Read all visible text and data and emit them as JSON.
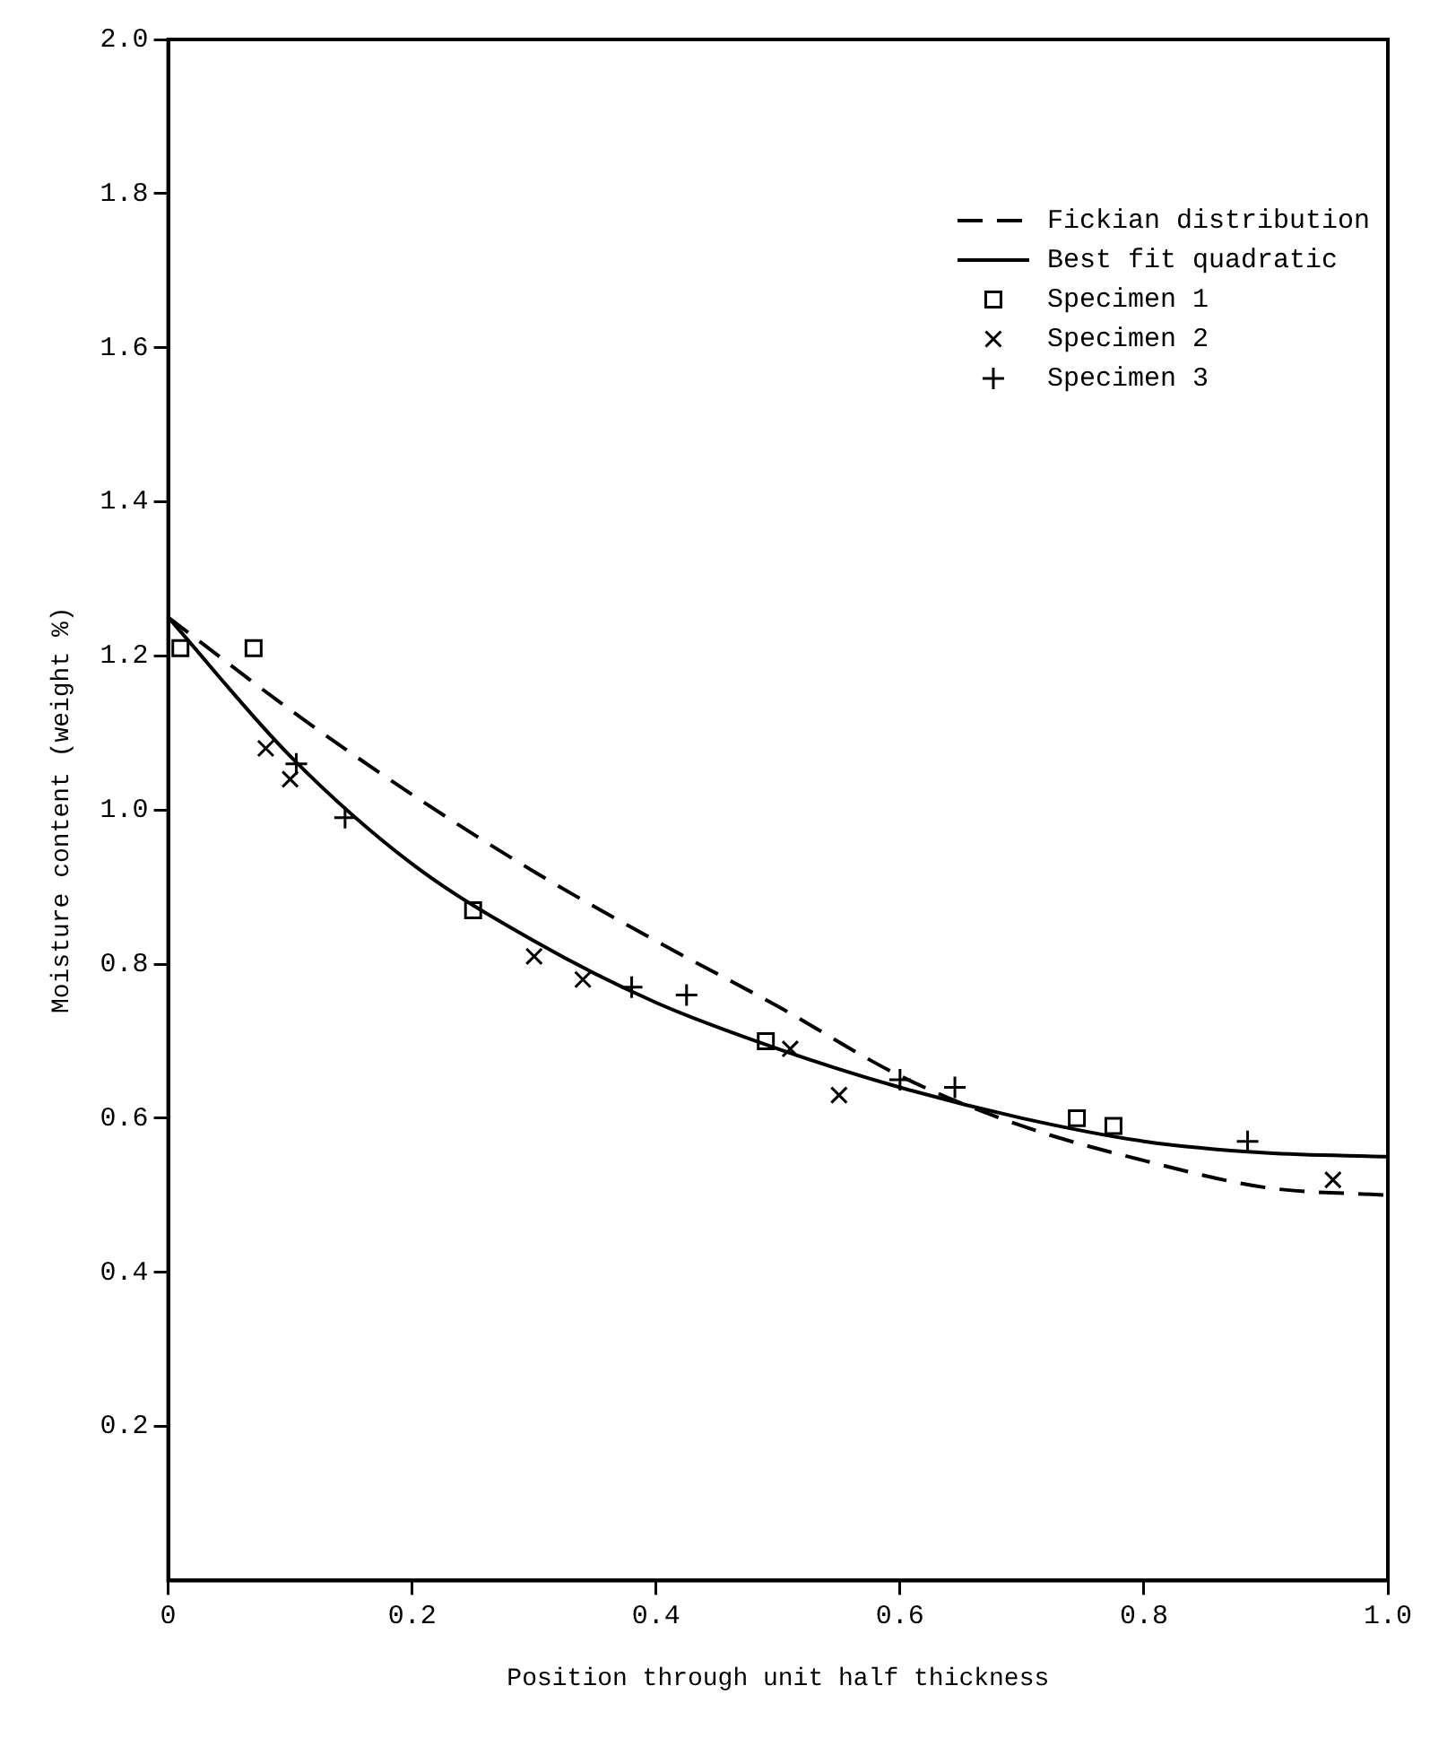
{
  "chart_data": {
    "type": "scatter",
    "xlabel": "Position through unit half thickness",
    "ylabel": "Moisture content (weight %)",
    "xlim": [
      0,
      1.0
    ],
    "xticks": [
      {
        "value": 0,
        "label": "0"
      },
      0.2,
      0.4,
      0.6,
      0.8,
      {
        "value": 1,
        "label": "1.0"
      }
    ],
    "ylim": [
      0,
      2.0
    ],
    "yticks": [
      0.2,
      0.4,
      0.6,
      0.8,
      {
        "value": 1,
        "label": "1.0"
      },
      1.2,
      1.4,
      1.6,
      1.8,
      {
        "value": 2,
        "label": "2.0"
      }
    ],
    "grid": false,
    "legend": "top right",
    "series": [
      {
        "name": "Fickian distribution",
        "type": "line",
        "line_style": "dashed",
        "marker": "none",
        "color": "#000000",
        "x": [
          0,
          0.1,
          0.2,
          0.3,
          0.4,
          0.5,
          0.6,
          0.7,
          0.8,
          0.9,
          1.0
        ],
        "values": [
          1.25,
          1.13,
          1.02,
          0.92,
          0.83,
          0.745,
          0.655,
          0.59,
          0.545,
          0.51,
          0.5
        ]
      },
      {
        "name": "Best fit quadratic",
        "type": "line",
        "line_style": "solid",
        "marker": "none",
        "color": "#000000",
        "x": [
          0,
          0.1,
          0.2,
          0.3,
          0.4,
          0.5,
          0.6,
          0.7,
          0.8,
          0.9,
          1.0
        ],
        "values": [
          1.25,
          1.07,
          0.93,
          0.83,
          0.75,
          0.69,
          0.64,
          0.6,
          0.57,
          0.555,
          0.55
        ]
      },
      {
        "name": "Specimen 1",
        "marker": "square",
        "color": "#000000",
        "x": [
          0.01,
          0.07,
          0.25,
          0.49,
          0.745,
          0.775
        ],
        "values": [
          1.21,
          1.21,
          0.87,
          0.7,
          0.6,
          0.59
        ]
      },
      {
        "name": "Specimen 2",
        "marker": "cross",
        "color": "#000000",
        "x": [
          0.08,
          0.1,
          0.3,
          0.34,
          0.51,
          0.55,
          0.955
        ],
        "values": [
          1.08,
          1.04,
          0.81,
          0.78,
          0.69,
          0.63,
          0.52
        ]
      },
      {
        "name": "Specimen 3",
        "marker": "plus",
        "color": "#000000",
        "x": [
          0.105,
          0.145,
          0.38,
          0.425,
          0.6,
          0.645,
          0.885
        ],
        "values": [
          1.06,
          0.99,
          0.77,
          0.76,
          0.65,
          0.64,
          0.57
        ]
      }
    ]
  }
}
